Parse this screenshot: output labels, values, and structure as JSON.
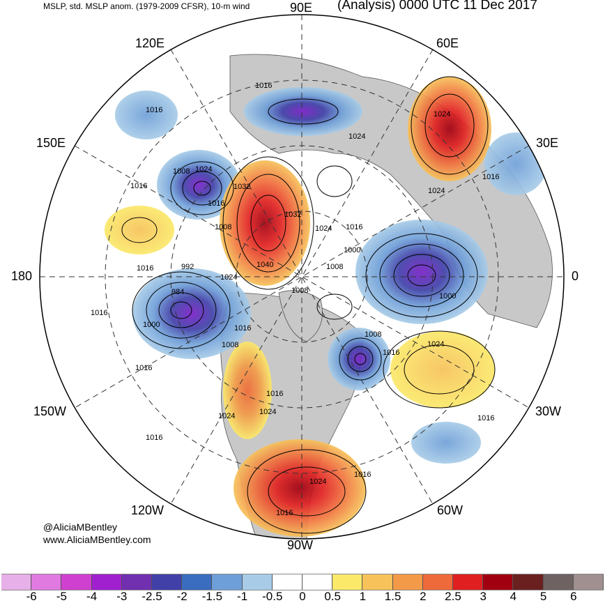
{
  "header": {
    "subtitle_left": "MSLP, std. MSLP anom. (1979-2009 CFSR), 10-m wind",
    "title_right": "(Analysis) 0000 UTC 11 Dec 2017"
  },
  "longitude_labels": {
    "top": "90E",
    "upper_left": "120E",
    "upper_right": "60E",
    "mid_left_upper": "150E",
    "mid_right_upper": "30E",
    "left": "180",
    "right": "0",
    "mid_left_lower": "150W",
    "mid_right_lower": "30W",
    "lower_left": "120W",
    "lower_right": "60W",
    "bottom": "90W"
  },
  "isobar_labels": [
    "1016",
    "1016",
    "1024",
    "1024",
    "1008",
    "1024",
    "1032",
    "1016",
    "1016",
    "1008",
    "1032",
    "1024",
    "1016",
    "1024",
    "1016",
    "992",
    "1040",
    "1000",
    "1008",
    "1024",
    "1000",
    "984",
    "1008",
    "1000",
    "1016",
    "1008",
    "1008",
    "1024",
    "1016",
    "1016",
    "1016",
    "1024",
    "1024",
    "1016",
    "1016",
    "1016",
    "1024",
    "1016",
    "1016",
    "1016"
  ],
  "credits": {
    "handle": "@AliciaMBentley",
    "website": "www.AliciaMBentley.com"
  },
  "colorbar": {
    "labels": [
      "-6",
      "-5",
      "-4",
      "-3",
      "-2.5",
      "-2",
      "-1.5",
      "-1",
      "-0.5",
      "0",
      "0.5",
      "1",
      "1.5",
      "2",
      "2.5",
      "3",
      "4",
      "5",
      "6"
    ],
    "colors": [
      "#e8b0e8",
      "#e07ae0",
      "#d040d0",
      "#a020d0",
      "#7030b0",
      "#4040a8",
      "#3a6cc0",
      "#6f9fd8",
      "#a8cce8",
      "#ffffff",
      "#ffffff",
      "#fbe96a",
      "#f7c25a",
      "#f39a48",
      "#ef6a3a",
      "#e02020",
      "#a00010",
      "#6b2020",
      "#6e6262",
      "#a09090"
    ]
  },
  "colors": {
    "land_gray": "#c8c8c8",
    "ocean": "#ffffff",
    "isobar": "#000000",
    "grid": "#333333"
  }
}
